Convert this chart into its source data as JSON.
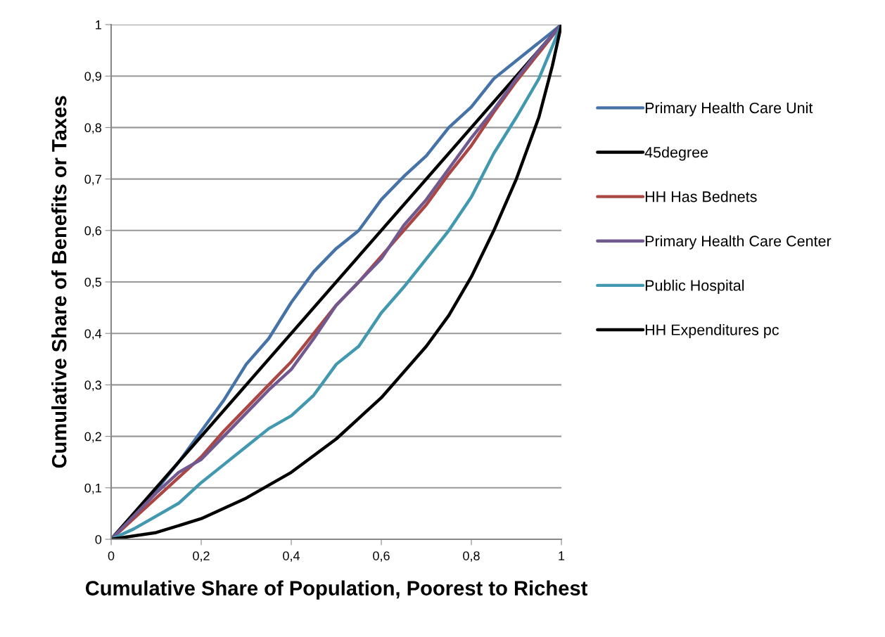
{
  "chart_data": {
    "type": "line",
    "xlabel": "Cumulative Share of Population, Poorest to Richest",
    "ylabel": "Cumulative Share of Benefits or Taxes",
    "series": [
      {
        "name": "Primary Health Care Unit",
        "color": "#4572a7",
        "x": [
          0,
          0.05,
          0.1,
          0.15,
          0.2,
          0.25,
          0.3,
          0.35,
          0.4,
          0.45,
          0.5,
          0.55,
          0.6,
          0.65,
          0.7,
          0.75,
          0.8,
          0.85,
          0.9,
          0.95,
          1
        ],
        "values": [
          0,
          0.045,
          0.095,
          0.15,
          0.21,
          0.27,
          0.34,
          0.39,
          0.46,
          0.52,
          0.565,
          0.6,
          0.66,
          0.705,
          0.745,
          0.8,
          0.84,
          0.895,
          0.93,
          0.965,
          1
        ]
      },
      {
        "name": "45degree",
        "color": "#000000",
        "x": [
          0,
          1
        ],
        "values": [
          0,
          1
        ]
      },
      {
        "name": "HH Has Bednets",
        "color": "#aa4643",
        "x": [
          0,
          0.05,
          0.1,
          0.15,
          0.2,
          0.25,
          0.3,
          0.35,
          0.4,
          0.45,
          0.5,
          0.55,
          0.6,
          0.65,
          0.7,
          0.75,
          0.8,
          0.85,
          0.9,
          0.95,
          1
        ],
        "values": [
          0,
          0.04,
          0.08,
          0.12,
          0.16,
          0.21,
          0.255,
          0.3,
          0.345,
          0.4,
          0.455,
          0.5,
          0.55,
          0.6,
          0.65,
          0.71,
          0.765,
          0.83,
          0.89,
          0.945,
          1
        ]
      },
      {
        "name": "Primary Health Care Center",
        "color": "#71588f",
        "x": [
          0,
          0.05,
          0.1,
          0.15,
          0.2,
          0.25,
          0.3,
          0.35,
          0.4,
          0.45,
          0.5,
          0.55,
          0.6,
          0.65,
          0.7,
          0.75,
          0.8,
          0.85,
          0.9,
          0.95,
          1
        ],
        "values": [
          0,
          0.045,
          0.09,
          0.13,
          0.155,
          0.2,
          0.245,
          0.29,
          0.33,
          0.39,
          0.455,
          0.5,
          0.545,
          0.61,
          0.66,
          0.72,
          0.78,
          0.835,
          0.895,
          0.95,
          1
        ]
      },
      {
        "name": "Public Hospital",
        "color": "#4198af",
        "x": [
          0,
          0.05,
          0.1,
          0.15,
          0.2,
          0.25,
          0.3,
          0.35,
          0.4,
          0.45,
          0.5,
          0.55,
          0.6,
          0.65,
          0.7,
          0.75,
          0.8,
          0.85,
          0.9,
          0.95,
          1
        ],
        "values": [
          0,
          0.02,
          0.045,
          0.07,
          0.11,
          0.145,
          0.18,
          0.215,
          0.24,
          0.28,
          0.34,
          0.375,
          0.44,
          0.49,
          0.545,
          0.6,
          0.665,
          0.75,
          0.82,
          0.895,
          1
        ]
      },
      {
        "name": "HH Expenditures pc",
        "color": "#000000",
        "x": [
          0,
          0.1,
          0.2,
          0.3,
          0.4,
          0.5,
          0.6,
          0.7,
          0.75,
          0.8,
          0.85,
          0.9,
          0.95,
          0.98,
          1
        ],
        "values": [
          0,
          0.013,
          0.04,
          0.08,
          0.13,
          0.195,
          0.275,
          0.375,
          0.435,
          0.51,
          0.6,
          0.7,
          0.82,
          0.92,
          1
        ]
      }
    ],
    "xlim": [
      0,
      1
    ],
    "ylim": [
      0,
      1
    ],
    "xticks": [
      0,
      {
        "value": 0.2,
        "label": "0,2"
      },
      {
        "value": 0.4,
        "label": "0,4"
      },
      {
        "value": 0.6,
        "label": "0,6"
      },
      {
        "value": 0.8,
        "label": "0,8"
      },
      1
    ],
    "yticks": [
      0,
      {
        "value": 0.1,
        "label": "0,1"
      },
      {
        "value": 0.2,
        "label": "0,2"
      },
      {
        "value": 0.3,
        "label": "0,3"
      },
      {
        "value": 0.4,
        "label": "0,4"
      },
      {
        "value": 0.5,
        "label": "0,5"
      },
      {
        "value": 0.6,
        "label": "0,6"
      },
      {
        "value": 0.7,
        "label": "0,7"
      },
      {
        "value": 0.8,
        "label": "0,8"
      },
      {
        "value": 0.9,
        "label": "0,9"
      },
      1
    ],
    "grid": "y",
    "legend": "right",
    "marker": "none",
    "line_style": "solid"
  }
}
